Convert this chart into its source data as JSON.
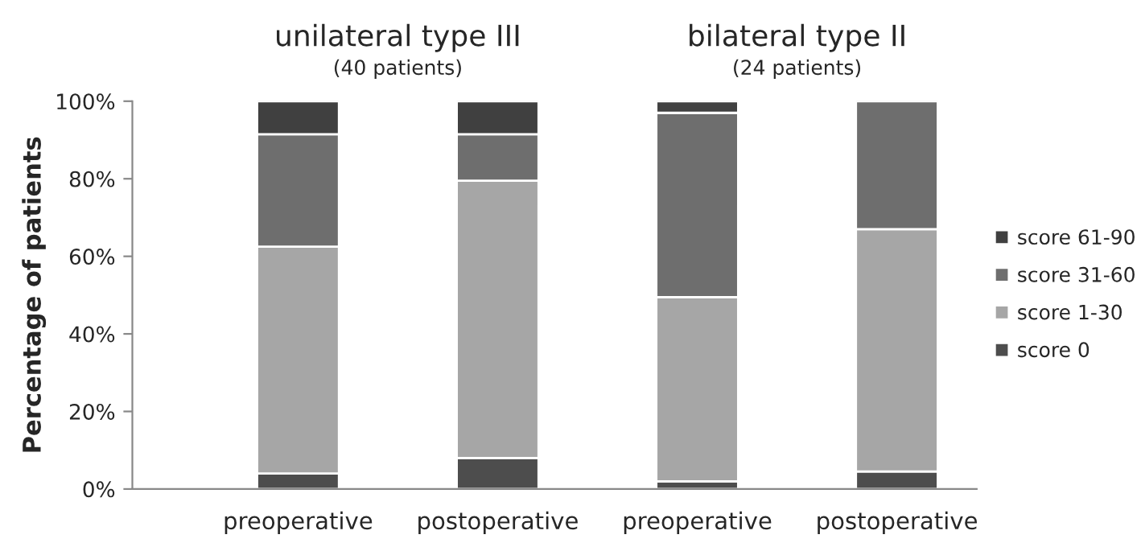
{
  "chart_data": {
    "type": "bar",
    "stacked": true,
    "ylabel": "Percentage of patients",
    "categories": [
      "preoperative",
      "postoperative",
      "preoperative",
      "postoperative"
    ],
    "series": [
      {
        "name": "score 0",
        "color": "#4d4d4d",
        "values": [
          4,
          8,
          2,
          4.5
        ]
      },
      {
        "name": "score 1-30",
        "color": "#a6a6a6",
        "values": [
          58.5,
          71.5,
          47.5,
          62.5
        ]
      },
      {
        "name": "score 31-60",
        "color": "#6e6e6e",
        "values": [
          29,
          12,
          47.5,
          33
        ]
      },
      {
        "name": "score 61-90",
        "color": "#404040",
        "values": [
          8.5,
          8.5,
          3,
          0
        ]
      }
    ],
    "ylim": [
      0,
      100
    ],
    "yticks": [
      {
        "value": 0,
        "label": "0%"
      },
      {
        "value": 20,
        "label": "20%"
      },
      {
        "value": 40,
        "label": "40%"
      },
      {
        "value": 60,
        "label": "60%"
      },
      {
        "value": 80,
        "label": "80%"
      },
      {
        "value": 100,
        "label": "100%"
      }
    ],
    "annotations": [
      "unilateral type III",
      "(40 patients)",
      "bilateral type II",
      "(24 patients)"
    ],
    "legend": "right",
    "grid": false
  }
}
